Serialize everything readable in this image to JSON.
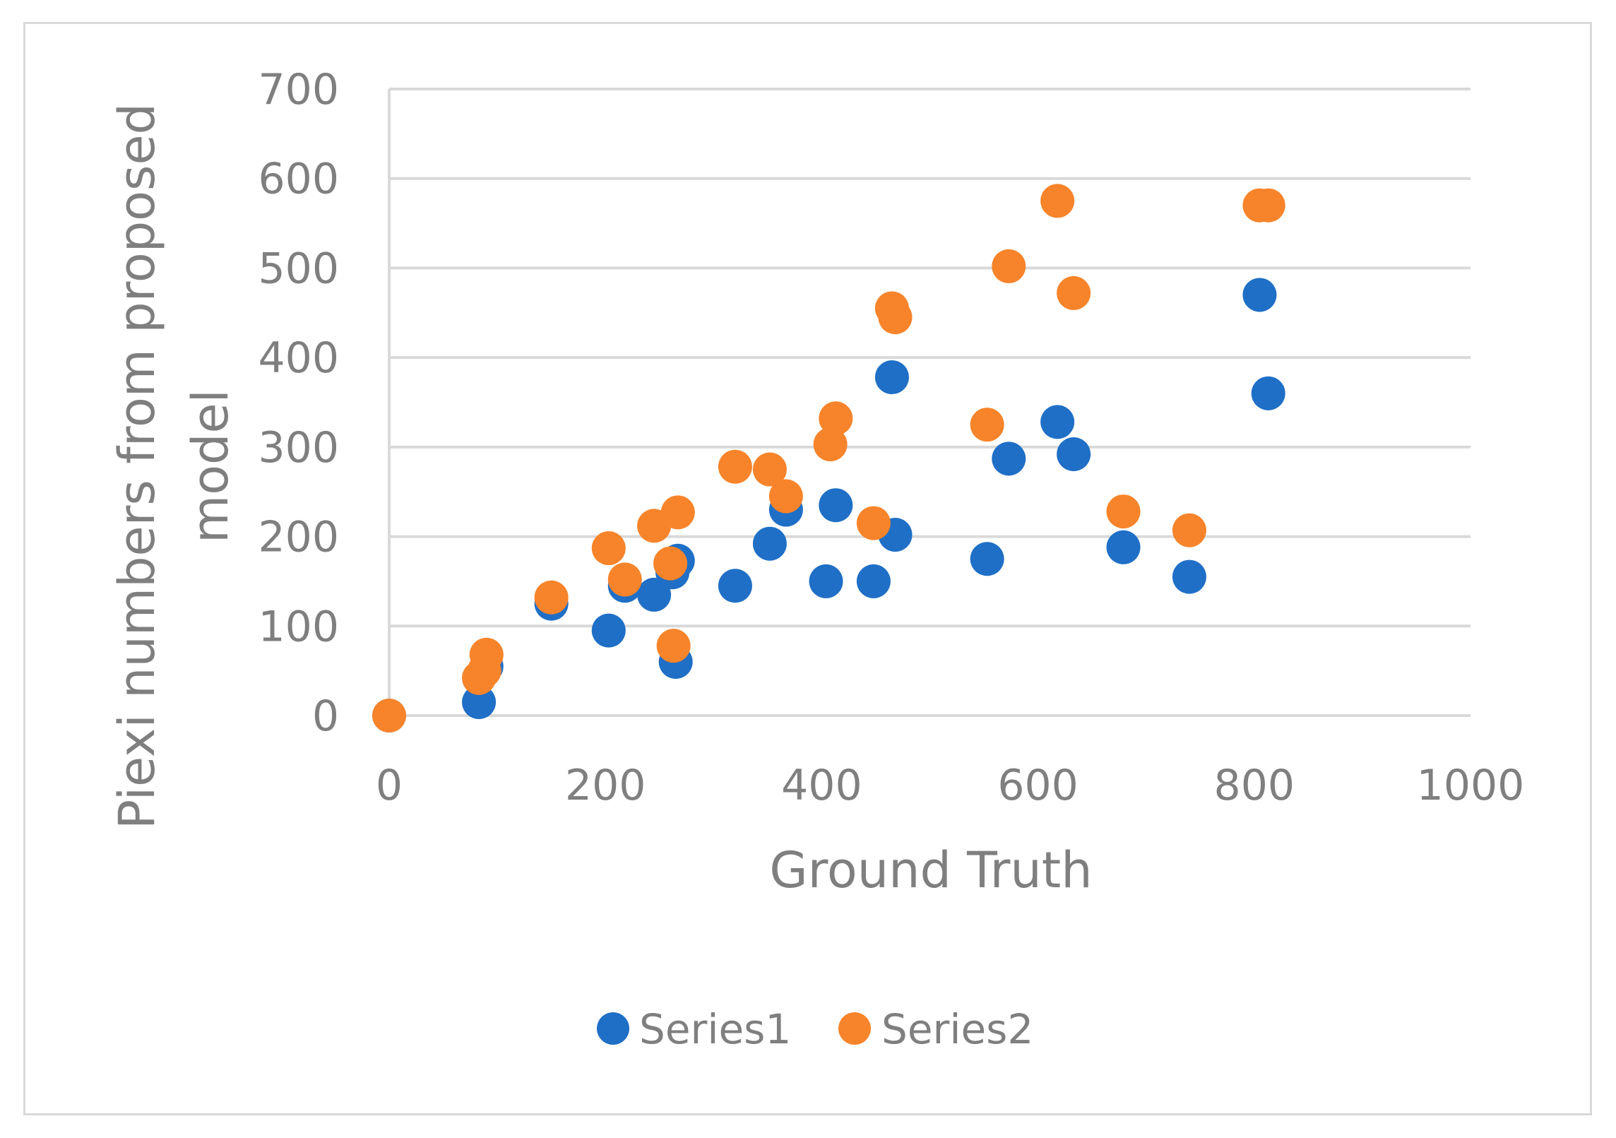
{
  "chart_data": {
    "type": "scatter",
    "title": "",
    "xlabel": "Ground Truth",
    "ylabel_lines": [
      "Piexi numbers  from proposed",
      "model"
    ],
    "xlim": [
      0,
      1000
    ],
    "ylim": [
      0,
      700
    ],
    "xticks": [
      0,
      200,
      400,
      600,
      800,
      1000
    ],
    "yticks": [
      0,
      100,
      200,
      300,
      400,
      500,
      600,
      700
    ],
    "grid": "horizontal",
    "legend_position": "bottom",
    "series": [
      {
        "name": "Series1",
        "color": "#1f6fc6",
        "points": [
          [
            0,
            0
          ],
          [
            83,
            15
          ],
          [
            90,
            55
          ],
          [
            150,
            125
          ],
          [
            203,
            95
          ],
          [
            218,
            145
          ],
          [
            245,
            135
          ],
          [
            262,
            160
          ],
          [
            265,
            60
          ],
          [
            267,
            173
          ],
          [
            320,
            145
          ],
          [
            352,
            192
          ],
          [
            367,
            230
          ],
          [
            404,
            150
          ],
          [
            413,
            235
          ],
          [
            448,
            150
          ],
          [
            465,
            378
          ],
          [
            468,
            202
          ],
          [
            553,
            175
          ],
          [
            573,
            287
          ],
          [
            618,
            328
          ],
          [
            633,
            292
          ],
          [
            679,
            188
          ],
          [
            740,
            155
          ],
          [
            805,
            470
          ],
          [
            813,
            360
          ]
        ]
      },
      {
        "name": "Series2",
        "color": "#f7842a",
        "points": [
          [
            0,
            0
          ],
          [
            83,
            42
          ],
          [
            88,
            50
          ],
          [
            90,
            68
          ],
          [
            150,
            132
          ],
          [
            203,
            187
          ],
          [
            218,
            152
          ],
          [
            245,
            212
          ],
          [
            260,
            170
          ],
          [
            263,
            78
          ],
          [
            267,
            227
          ],
          [
            320,
            278
          ],
          [
            352,
            275
          ],
          [
            367,
            245
          ],
          [
            408,
            303
          ],
          [
            413,
            332
          ],
          [
            448,
            215
          ],
          [
            465,
            455
          ],
          [
            468,
            445
          ],
          [
            553,
            325
          ],
          [
            573,
            502
          ],
          [
            618,
            575
          ],
          [
            633,
            472
          ],
          [
            679,
            228
          ],
          [
            740,
            207
          ],
          [
            805,
            570
          ],
          [
            813,
            570
          ]
        ]
      }
    ]
  }
}
